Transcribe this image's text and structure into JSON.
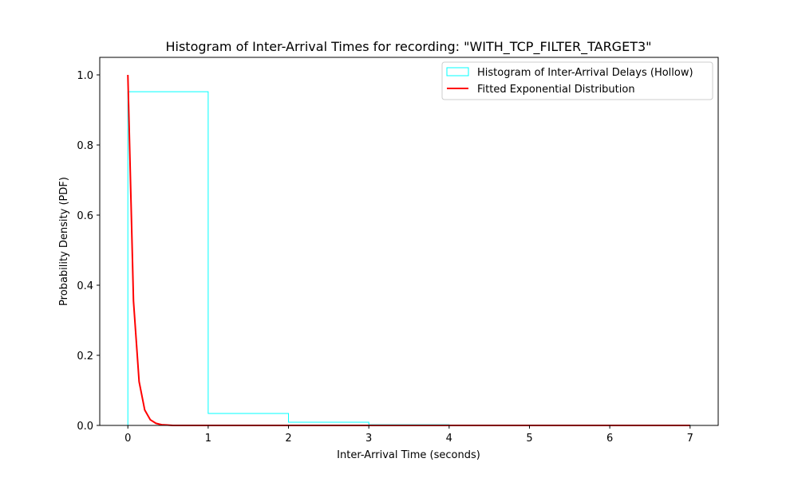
{
  "chart_data": {
    "type": "line",
    "title": "Histogram of Inter-Arrival Times for recording: \"WITH_TCP_FILTER_TARGET3\"",
    "xlabel": "Inter-Arrival Time (seconds)",
    "ylabel": "Probability Density (PDF)",
    "xlim": [
      -0.35,
      7.35
    ],
    "ylim": [
      0,
      1.05
    ],
    "xticks": [
      0,
      1,
      2,
      3,
      4,
      5,
      6,
      7
    ],
    "yticks": [
      0.0,
      0.2,
      0.4,
      0.6,
      0.8,
      1.0
    ],
    "xtick_labels": [
      "0",
      "1",
      "2",
      "3",
      "4",
      "5",
      "6",
      "7"
    ],
    "ytick_labels": [
      "0.0",
      "0.2",
      "0.4",
      "0.6",
      "0.8",
      "1.0"
    ],
    "grid": false,
    "legend_position": "top-right",
    "histogram": {
      "name": "Histogram of Inter-Arrival Delays (Hollow)",
      "color": "#00ffff",
      "bin_edges": [
        0,
        1,
        2,
        3,
        4,
        5,
        6,
        7
      ],
      "densities": [
        0.952,
        0.034,
        0.009,
        0.002,
        0.001,
        0.001,
        0.001
      ]
    },
    "series": [
      {
        "name": "Fitted Exponential Distribution",
        "color": "#ff0000",
        "x": [
          0,
          0.07,
          0.14,
          0.21,
          0.28,
          0.35,
          0.42,
          0.49,
          0.56,
          0.7,
          1.0,
          1.5,
          2.0,
          3.0,
          4.0,
          5.0,
          6.0,
          7.0
        ],
        "y": [
          1.0,
          0.355,
          0.125,
          0.044,
          0.016,
          0.006,
          0.002,
          0.001,
          0.0,
          0.0,
          0.0,
          0.0,
          0.0,
          0.0,
          0.0,
          0.0,
          0.0,
          0.0
        ]
      }
    ]
  }
}
